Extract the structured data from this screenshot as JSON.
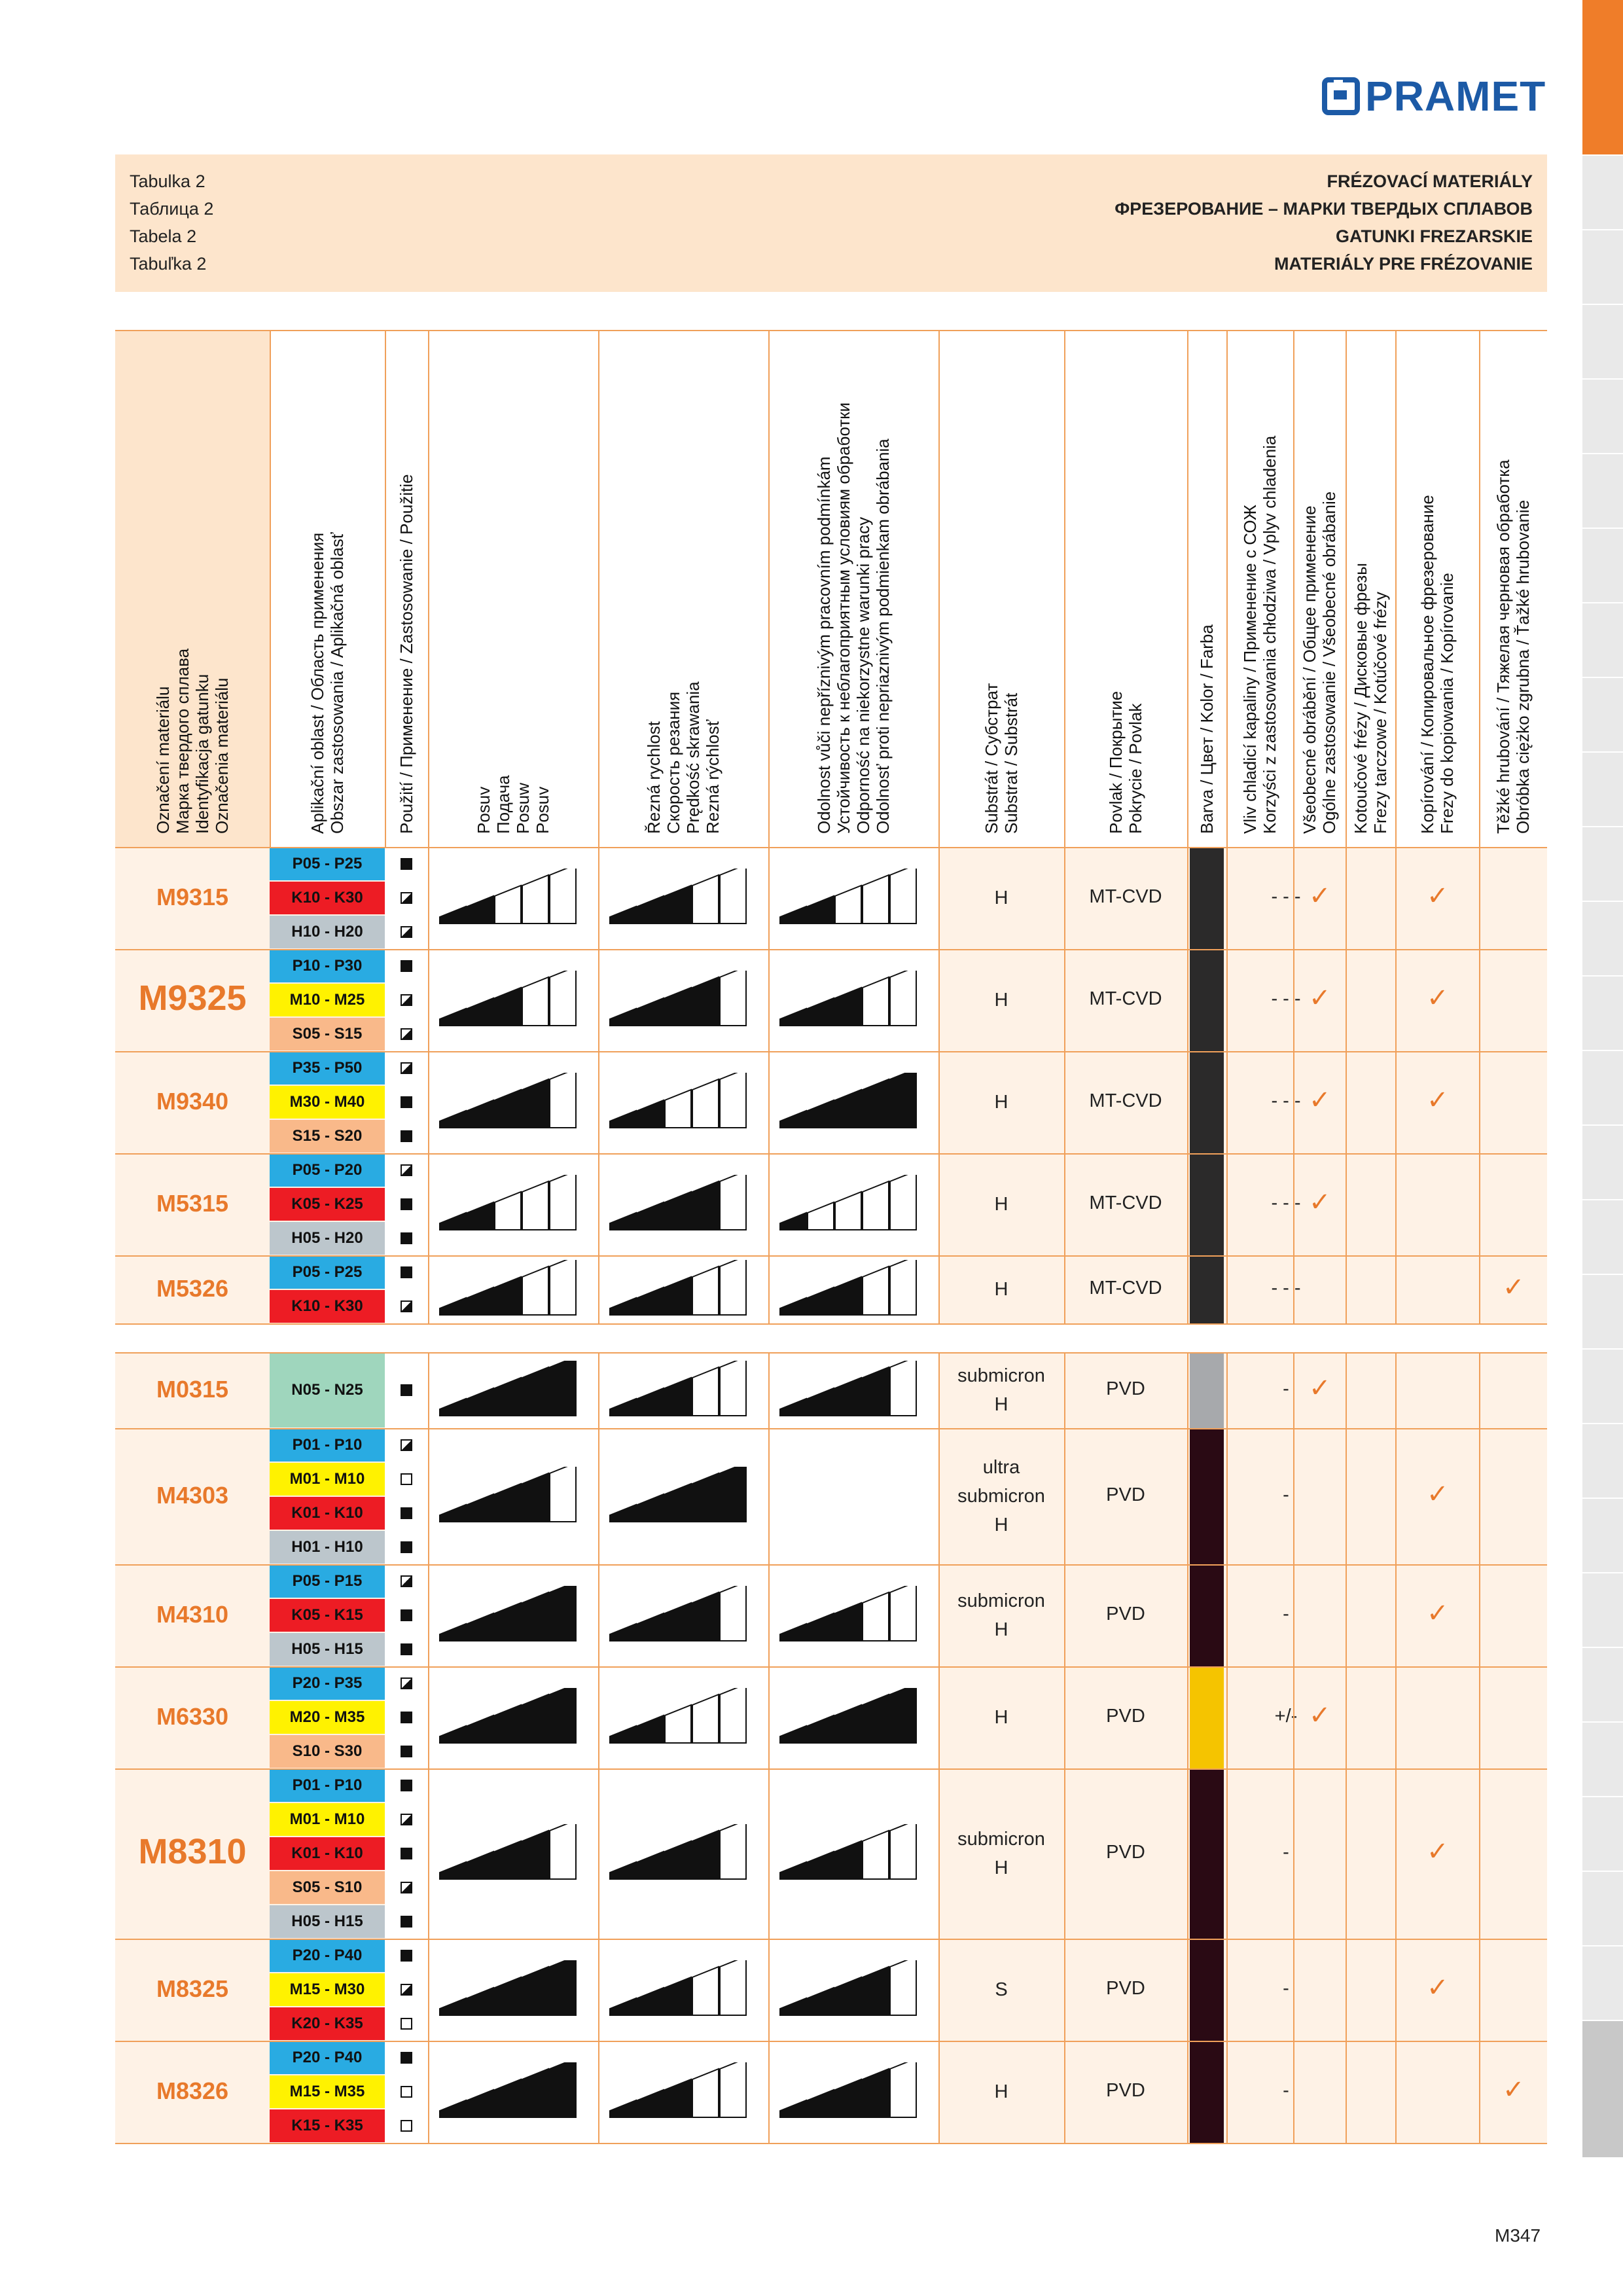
{
  "logo": "PRAMET",
  "page_number": "M347",
  "header_left": [
    "Tabulka 2",
    "Таблица 2",
    "Tabela 2",
    "Tabuľka 2"
  ],
  "header_right": [
    "FRÉZOVACÍ MATERIÁLY",
    "ФРЕЗЕРОВАНИЕ – МАРКИ ТВЕРДЫХ СПЛАВОВ",
    "GATUNKI FREZARSKIE",
    "MATERIÁLY PRE FRÉZOVANIE"
  ],
  "columns": [
    [
      "Označení materiálu",
      "Марка твердого сплава",
      "Identyfikacja gatunku",
      "Označenia materiálu"
    ],
    [
      "Aplikační oblast / Область применения",
      "Obszar zastosowania / Aplikačná oblasť"
    ],
    [
      "Použití / Применение / Zastosowanie / Použitie"
    ],
    [
      "Posuv",
      "Подача",
      "Posuw",
      "Posuv"
    ],
    [
      "Řezná rychlost",
      "Скорость резания",
      "Prędkość skrawania",
      "Rezná rýchlosť"
    ],
    [
      "Odolnost vůči nepříznivým pracovním podmínkám",
      "Устойчивость к неблагоприятным условиям обработки",
      "Odporność na niekorzystne warunki pracy",
      "Odolnosť proti nepriaznivým podmienkam obrábania"
    ],
    [
      "Substrát / Субстрат",
      "Substrat / Substrát"
    ],
    [
      "Povlak / Покрытие",
      "Pokrycie / Povlak"
    ],
    [
      "Barva / Цвет / Kolor / Farba"
    ],
    [
      "Vliv chladicí kapaliny / Применение с СОЖ",
      "Korzyści z zastosowania chłodziwa / Vplyv chladenia"
    ],
    [
      "Všeobecné obrábění / Общее применение",
      "Ogólne zastosowanie / Všeobecné obrábanie"
    ],
    [
      "Kotoučové frézy / Дисковые фрезы",
      "Frezy tarczowe / Kotúčové frézy"
    ],
    [
      "Kopírování / Копировальное фрезерование",
      "Frezy do kopiowania / Kopírovanie"
    ],
    [
      "Těžké hrubování / Тяжелая черновая обработка",
      "Obróbka ciężko zgrubna / Ťažké hrubovanie"
    ]
  ],
  "groups": [
    {
      "name": "M9315",
      "big": false,
      "section": 1,
      "ranges": [
        [
          "P05 - P25",
          "#29abe2",
          "full"
        ],
        [
          "K10 - K30",
          "#ed1c24",
          "half"
        ],
        [
          "H10 - H20",
          "#bcc6cc",
          "half"
        ]
      ],
      "feed": 2,
      "speed": 3,
      "tough": 2,
      "substrate": [
        "H"
      ],
      "coating": "MT-CVD",
      "color": "#2b2a2a",
      "coolant": "- - -",
      "checks": [
        1,
        0,
        1,
        0
      ]
    },
    {
      "name": "M9325",
      "big": true,
      "section": 1,
      "ranges": [
        [
          "P10 - P30",
          "#29abe2",
          "full"
        ],
        [
          "M10 - M25",
          "#fff200",
          "half"
        ],
        [
          "S05 - S15",
          "#f9b98a",
          "half"
        ]
      ],
      "feed": 3,
      "speed": 4,
      "tough": 3,
      "substrate": [
        "H"
      ],
      "coating": "MT-CVD",
      "color": "#2b2a2a",
      "coolant": "- - -",
      "checks": [
        1,
        0,
        1,
        0
      ]
    },
    {
      "name": "M9340",
      "big": false,
      "section": 1,
      "ranges": [
        [
          "P35 - P50",
          "#29abe2",
          "half"
        ],
        [
          "M30 - M40",
          "#fff200",
          "full"
        ],
        [
          "S15 - S20",
          "#f9b98a",
          "full"
        ]
      ],
      "feed": 4,
      "speed": 2,
      "tough": 5,
      "substrate": [
        "H"
      ],
      "coating": "MT-CVD",
      "color": "#2b2a2a",
      "coolant": "- - -",
      "checks": [
        1,
        0,
        1,
        0
      ]
    },
    {
      "name": "M5315",
      "big": false,
      "section": 1,
      "ranges": [
        [
          "P05 - P20",
          "#29abe2",
          "half"
        ],
        [
          "K05 - K25",
          "#ed1c24",
          "full"
        ],
        [
          "H05 - H20",
          "#bcc6cc",
          "full"
        ]
      ],
      "feed": 2,
      "speed": 4,
      "tough": 1,
      "substrate": [
        "H"
      ],
      "coating": "MT-CVD",
      "color": "#2b2a2a",
      "coolant": "- - -",
      "checks": [
        1,
        0,
        0,
        0
      ]
    },
    {
      "name": "M5326",
      "big": false,
      "section": 1,
      "ranges": [
        [
          "P05 - P25",
          "#29abe2",
          "full"
        ],
        [
          "K10 - K30",
          "#ed1c24",
          "half"
        ]
      ],
      "feed": 3,
      "speed": 3,
      "tough": 3,
      "substrate": [
        "H"
      ],
      "coating": "MT-CVD",
      "color": "#2b2a2a",
      "coolant": "- - -",
      "checks": [
        0,
        0,
        0,
        1
      ]
    },
    {
      "name": "M0315",
      "big": false,
      "section": 2,
      "ranges": [
        [
          "N05 - N25",
          "#9fd6bd",
          "full"
        ]
      ],
      "feed": 5,
      "speed": 3,
      "tough": 4,
      "substrate": [
        "submicron",
        "H"
      ],
      "coating": "PVD",
      "color": "#a7a9ac",
      "coolant": "-",
      "checks": [
        1,
        0,
        0,
        0
      ]
    },
    {
      "name": "M4303",
      "big": false,
      "section": 2,
      "ranges": [
        [
          "P01 - P10",
          "#29abe2",
          "half"
        ],
        [
          "M01 - M10",
          "#fff200",
          "empty"
        ],
        [
          "K01 - K10",
          "#ed1c24",
          "full"
        ],
        [
          "H01 - H10",
          "#bcc6cc",
          "full"
        ]
      ],
      "feed": 4,
      "speed": 5,
      "tough": 0,
      "substrate": [
        "ultra",
        "submicron",
        "H"
      ],
      "coating": "PVD",
      "color": "#2a0a14",
      "coolant": "-",
      "checks": [
        0,
        0,
        1,
        0
      ]
    },
    {
      "name": "M4310",
      "big": false,
      "section": 2,
      "ranges": [
        [
          "P05 - P15",
          "#29abe2",
          "half"
        ],
        [
          "K05 - K15",
          "#ed1c24",
          "full"
        ],
        [
          "H05 - H15",
          "#bcc6cc",
          "full"
        ]
      ],
      "feed": 5,
      "speed": 4,
      "tough": 3,
      "substrate": [
        "submicron",
        "H"
      ],
      "coating": "PVD",
      "color": "#2a0a14",
      "coolant": "-",
      "checks": [
        0,
        0,
        1,
        0
      ]
    },
    {
      "name": "M6330",
      "big": false,
      "section": 2,
      "ranges": [
        [
          "P20 - P35",
          "#29abe2",
          "half"
        ],
        [
          "M20 - M35",
          "#fff200",
          "full"
        ],
        [
          "S10 - S30",
          "#f9b98a",
          "full"
        ]
      ],
      "feed": 5,
      "speed": 2,
      "tough": 5,
      "substrate": [
        "H"
      ],
      "coating": "PVD",
      "color": "#f5c400",
      "coolant": "+/-",
      "checks": [
        1,
        0,
        0,
        0
      ]
    },
    {
      "name": "M8310",
      "big": true,
      "section": 2,
      "ranges": [
        [
          "P01 - P10",
          "#29abe2",
          "full"
        ],
        [
          "M01 - M10",
          "#fff200",
          "half"
        ],
        [
          "K01 - K10",
          "#ed1c24",
          "full"
        ],
        [
          "S05 - S10",
          "#f9b98a",
          "half"
        ],
        [
          "H05 - H15",
          "#bcc6cc",
          "full"
        ]
      ],
      "feed": 4,
      "speed": 4,
      "tough": 3,
      "substrate": [
        "submicron",
        "H"
      ],
      "coating": "PVD",
      "color": "#2a0a14",
      "coolant": "-",
      "checks": [
        0,
        0,
        1,
        0
      ]
    },
    {
      "name": "M8325",
      "big": false,
      "section": 2,
      "ranges": [
        [
          "P20 - P40",
          "#29abe2",
          "full"
        ],
        [
          "M15 - M30",
          "#fff200",
          "half"
        ],
        [
          "K20 - K35",
          "#ed1c24",
          "empty"
        ]
      ],
      "feed": 5,
      "speed": 3,
      "tough": 4,
      "substrate": [
        "S"
      ],
      "coating": "PVD",
      "color": "#2a0a14",
      "coolant": "-",
      "checks": [
        0,
        0,
        1,
        0
      ]
    },
    {
      "name": "M8326",
      "big": false,
      "section": 2,
      "ranges": [
        [
          "P20 - P40",
          "#29abe2",
          "full"
        ],
        [
          "M15 - M35",
          "#fff200",
          "empty"
        ],
        [
          "K15 - K35",
          "#ed1c24",
          "empty"
        ]
      ],
      "feed": 5,
      "speed": 3,
      "tough": 4,
      "substrate": [
        "H"
      ],
      "coating": "PVD",
      "color": "#2a0a14",
      "coolant": "-",
      "checks": [
        0,
        0,
        0,
        1
      ]
    }
  ]
}
